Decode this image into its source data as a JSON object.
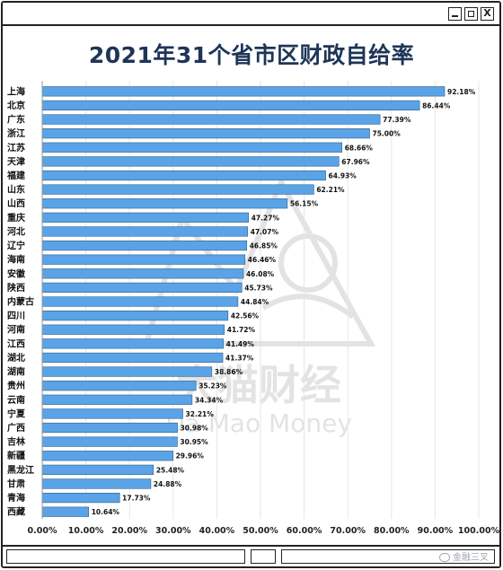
{
  "window": {
    "buttons": [
      "minimize",
      "maximize",
      "close"
    ],
    "close_glyph": "X"
  },
  "watermark": {
    "text": "大猫财经",
    "subtext": "Da Mao Money"
  },
  "footer": {
    "credit": "金融三叉"
  },
  "colors": {
    "bar": "#5aa3e6",
    "bar_border": "#2f5f8f",
    "title": "#1e3557",
    "grid": "#e6e6e6"
  },
  "chart_data": {
    "type": "bar",
    "orientation": "horizontal",
    "title": "2021年31个省市区财政自给率",
    "xlabel": "",
    "ylabel": "",
    "xlim": [
      0,
      100
    ],
    "x_tick_labels": [
      "0.00%",
      "10.00%",
      "20.00%",
      "30.00%",
      "40.00%",
      "50.00%",
      "60.00%",
      "70.00%",
      "80.00%",
      "90.00%",
      "100.00%"
    ],
    "grid": true,
    "categories": [
      "上海",
      "北京",
      "广东",
      "浙江",
      "江苏",
      "天津",
      "福建",
      "山东",
      "山西",
      "重庆",
      "河北",
      "辽宁",
      "海南",
      "安徽",
      "陕西",
      "内蒙古",
      "四川",
      "河南",
      "江西",
      "湖北",
      "湖南",
      "贵州",
      "云南",
      "宁夏",
      "广西",
      "吉林",
      "新疆",
      "黑龙江",
      "甘肃",
      "青海",
      "西藏"
    ],
    "values": [
      92.18,
      86.44,
      77.39,
      75.0,
      68.66,
      67.96,
      64.93,
      62.21,
      56.15,
      47.27,
      47.07,
      46.85,
      46.46,
      46.08,
      45.73,
      44.84,
      42.56,
      41.72,
      41.49,
      41.37,
      38.86,
      35.23,
      34.34,
      32.21,
      30.98,
      30.95,
      29.96,
      25.48,
      24.88,
      17.73,
      10.64
    ],
    "value_labels": [
      "92.18%",
      "86.44%",
      "77.39%",
      "75.00%",
      "68.66%",
      "67.96%",
      "64.93%",
      "62.21%",
      "56.15%",
      "47.27%",
      "47.07%",
      "46.85%",
      "46.46%",
      "46.08%",
      "45.73%",
      "44.84%",
      "42.56%",
      "41.72%",
      "41.49%",
      "41.37%",
      "38.86%",
      "35.23%",
      "34.34%",
      "32.21%",
      "30.98%",
      "30.95%",
      "29.96%",
      "25.48%",
      "24.88%",
      "17.73%",
      "10.64%"
    ]
  }
}
